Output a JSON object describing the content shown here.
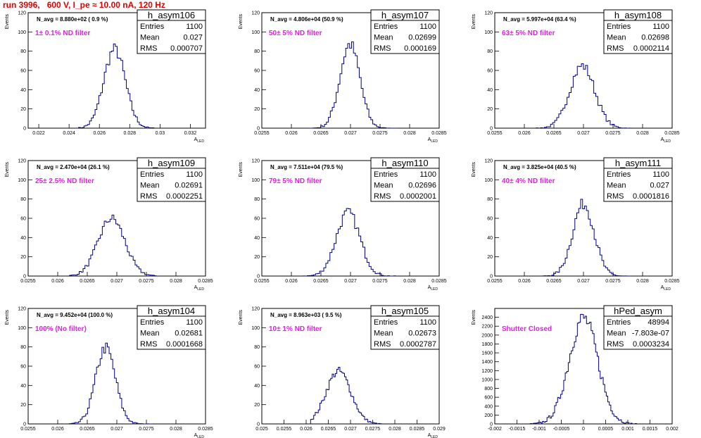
{
  "title": "run 3996,   600 V, I_pe ≈ 10.00 nA, 120 Hz",
  "chart_data": [
    {
      "type": "histogram",
      "name": "h_asym106",
      "navg": "N_avg = 8.880e+02 ( 0.9 %)",
      "filter": "1± 0.1% ND filter",
      "stats": {
        "Entries": "1100",
        "Mean": "0.027",
        "RMS": "0.000707"
      },
      "xlabel": "A_LED",
      "ylabel": "Events",
      "xlim": [
        0.0213,
        0.033
      ],
      "ylim": [
        0,
        120
      ],
      "xticks": [
        "0.022",
        "0.024",
        "0.026",
        "0.028",
        "0.03",
        "0.032"
      ],
      "xtickvals": [
        0.022,
        0.024,
        0.026,
        0.028,
        0.03,
        0.032
      ],
      "yticks": [
        0,
        20,
        40,
        60,
        80,
        100,
        120
      ],
      "peak": 82,
      "mean": 0.027,
      "sigma": 0.000707,
      "bins_from": 0.0245,
      "bins_to": 0.0296,
      "nbins": 42
    },
    {
      "type": "histogram",
      "name": "h_asym107",
      "navg": "N_avg = 4.806e+04 (50.9 %)",
      "filter": "50± 5% ND filter",
      "stats": {
        "Entries": "1100",
        "Mean": "0.02699",
        "RMS": "0.000169"
      },
      "xlabel": "A_LED",
      "ylabel": "Events",
      "xlim": [
        0.0255,
        0.0285
      ],
      "ylim": [
        0,
        120
      ],
      "xticks": [
        "0.0255",
        "0.026",
        "0.0265",
        "0.027",
        "0.0275",
        "0.028",
        "0.0285"
      ],
      "xtickvals": [
        0.0255,
        0.026,
        0.0265,
        0.027,
        0.0275,
        0.028,
        0.0285
      ],
      "yticks": [
        0,
        20,
        40,
        60,
        80,
        100,
        120
      ],
      "peak": 87,
      "mean": 0.02699,
      "sigma": 0.000169,
      "bins_from": 0.0263,
      "bins_to": 0.0278,
      "nbins": 46
    },
    {
      "type": "histogram",
      "name": "h_asym108",
      "navg": "N_avg = 5.997e+04 (63.4 %)",
      "filter": "63± 5% ND filter",
      "stats": {
        "Entries": "1100",
        "Mean": "0.02698",
        "RMS": "0.0002114"
      },
      "xlabel": "A_LED",
      "ylabel": "Events",
      "xlim": [
        0.0255,
        0.0285
      ],
      "ylim": [
        0,
        120
      ],
      "xticks": [
        "0.0255",
        "0.026",
        "0.0265",
        "0.027",
        "0.0275",
        "0.028",
        "0.0285"
      ],
      "xtickvals": [
        0.0255,
        0.026,
        0.0265,
        0.027,
        0.0275,
        0.028,
        0.0285
      ],
      "yticks": [
        0,
        20,
        40,
        60,
        80,
        100,
        120
      ],
      "peak": 65,
      "mean": 0.02698,
      "sigma": 0.0002114,
      "bins_from": 0.0262,
      "bins_to": 0.0278,
      "nbins": 46
    },
    {
      "type": "histogram",
      "name": "h_asym109",
      "navg": "N_avg = 2.470e+04 (26.1 %)",
      "filter": "25± 2.5% ND filter",
      "stats": {
        "Entries": "1100",
        "Mean": "0.02691",
        "RMS": "0.0002251"
      },
      "xlabel": "A_LED",
      "ylabel": "Events",
      "xlim": [
        0.0255,
        0.0285
      ],
      "ylim": [
        0,
        120
      ],
      "xticks": [
        "0.0255",
        "0.026",
        "0.0265",
        "0.027",
        "0.0275",
        "0.028",
        "0.0285"
      ],
      "xtickvals": [
        0.0255,
        0.026,
        0.0265,
        0.027,
        0.0275,
        0.028,
        0.0285
      ],
      "yticks": [
        0,
        20,
        40,
        60,
        80,
        100,
        120
      ],
      "peak": 60,
      "mean": 0.02691,
      "sigma": 0.0002251,
      "bins_from": 0.0262,
      "bins_to": 0.0277,
      "nbins": 46
    },
    {
      "type": "histogram",
      "name": "h_asym110",
      "navg": "N_avg = 7.511e+04 (79.5 %)",
      "filter": "79± 5% ND filter",
      "stats": {
        "Entries": "1100",
        "Mean": "0.02696",
        "RMS": "0.0002001"
      },
      "xlabel": "A_LED",
      "ylabel": "Events",
      "xlim": [
        0.0255,
        0.0285
      ],
      "ylim": [
        0,
        120
      ],
      "xticks": [
        "0.0255",
        "0.026",
        "0.0265",
        "0.027",
        "0.0275",
        "0.028",
        "0.0285"
      ],
      "xtickvals": [
        0.0255,
        0.026,
        0.0265,
        0.027,
        0.0275,
        0.028,
        0.0285
      ],
      "yticks": [
        0,
        20,
        40,
        60,
        80,
        100,
        120
      ],
      "peak": 66,
      "mean": 0.02696,
      "sigma": 0.0002001,
      "bins_from": 0.0262,
      "bins_to": 0.0278,
      "nbins": 46
    },
    {
      "type": "histogram",
      "name": "h_asym111",
      "navg": "N_avg = 3.825e+04 (40.5 %)",
      "filter": "40± 4% ND filter",
      "stats": {
        "Entries": "1100",
        "Mean": "0.027",
        "RMS": "0.0001816"
      },
      "xlabel": "A_LED",
      "ylabel": "Events",
      "xlim": [
        0.0255,
        0.0285
      ],
      "ylim": [
        0,
        120
      ],
      "xticks": [
        "0.0255",
        "0.026",
        "0.0265",
        "0.027",
        "0.0275",
        "0.028",
        "0.0285"
      ],
      "xtickvals": [
        0.0255,
        0.026,
        0.0265,
        0.027,
        0.0275,
        0.028,
        0.0285
      ],
      "yticks": [
        0,
        20,
        40,
        60,
        80,
        100,
        120
      ],
      "peak": 75,
      "mean": 0.027,
      "sigma": 0.0001816,
      "bins_from": 0.0263,
      "bins_to": 0.0278,
      "nbins": 46
    },
    {
      "type": "histogram",
      "name": "h_asym104",
      "navg": "N_avg = 9.452e+04 (100.0 %)",
      "filter": "100% (No filter)",
      "stats": {
        "Entries": "1100",
        "Mean": "0.02681",
        "RMS": "0.0001668"
      },
      "xlabel": "A_LED",
      "ylabel": "Events",
      "xlim": [
        0.0255,
        0.0285
      ],
      "ylim": [
        0,
        120
      ],
      "xticks": [
        "0.0255",
        "0.026",
        "0.0265",
        "0.027",
        "0.0275",
        "0.028",
        "0.0285"
      ],
      "xtickvals": [
        0.0255,
        0.026,
        0.0265,
        0.027,
        0.0275,
        0.028,
        0.0285
      ],
      "yticks": [
        0,
        20,
        40,
        60,
        80,
        100,
        120
      ],
      "peak": 79,
      "mean": 0.02681,
      "sigma": 0.0001668,
      "bins_from": 0.0262,
      "bins_to": 0.0276,
      "nbins": 46
    },
    {
      "type": "histogram",
      "name": "h_asym105",
      "navg": "N_avg = 8.963e+03 ( 9.5 %)",
      "filter": "10± 1% ND filter",
      "stats": {
        "Entries": "1100",
        "Mean": "0.02673",
        "RMS": "0.0002787"
      },
      "xlabel": "A_LED",
      "ylabel": "Events",
      "xlim": [
        0.025,
        0.029
      ],
      "ylim": [
        0,
        120
      ],
      "xticks": [
        "0.025",
        "0.0255",
        "0.026",
        "0.0265",
        "0.027",
        "0.0275",
        "0.028",
        "0.0285",
        "0.029"
      ],
      "xtickvals": [
        0.025,
        0.0255,
        0.026,
        0.0265,
        0.027,
        0.0275,
        0.028,
        0.0285,
        0.029
      ],
      "yticks": [
        0,
        20,
        40,
        60,
        80,
        100,
        120
      ],
      "peak": 55,
      "mean": 0.02673,
      "sigma": 0.0002787,
      "bins_from": 0.0261,
      "bins_to": 0.0277,
      "nbins": 46
    },
    {
      "type": "histogram",
      "name": "hPed_asym",
      "navg": "",
      "filter": "Shutter Closed",
      "stats": {
        "Entries": "48994",
        "Mean": "-7.803e-07",
        "RMS": "0.0003234"
      },
      "xlabel": "",
      "ylabel": "Events",
      "xlim": [
        -0.002,
        0.002
      ],
      "ylim": [
        0,
        2600
      ],
      "xticks": [
        "-0.002",
        "-0.0015",
        "-0.001",
        "-0.0005",
        "0",
        "0.0005",
        "0.001",
        "0.0015",
        "0.002"
      ],
      "xtickvals": [
        -0.002,
        -0.0015,
        -0.001,
        -0.0005,
        0,
        0.0005,
        0.001,
        0.0015,
        0.002
      ],
      "yticks": [
        0,
        200,
        400,
        600,
        800,
        1000,
        1200,
        1400,
        1600,
        1800,
        2000,
        2200,
        2400
      ],
      "peak": 2380,
      "mean": 0,
      "sigma": 0.0003234,
      "bins_from": -0.0012,
      "bins_to": 0.0012,
      "nbins": 70
    }
  ]
}
